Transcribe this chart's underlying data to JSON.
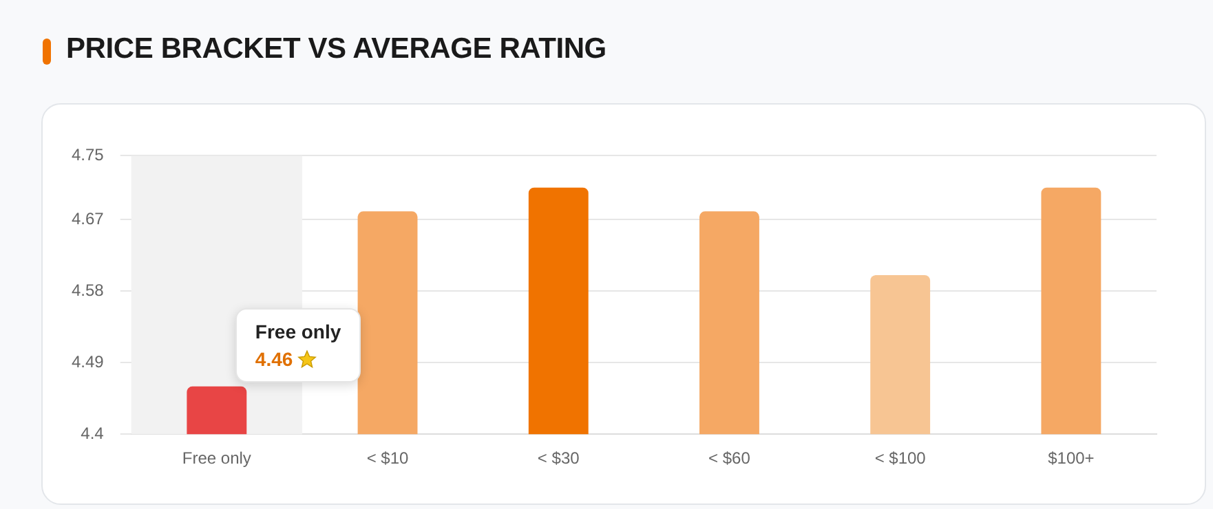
{
  "chart_data": {
    "type": "bar",
    "title": "PRICE BRACKET VS AVERAGE RATING",
    "categories": [
      "Free only",
      "< $10",
      "< $30",
      "< $60",
      "< $100",
      "$100+"
    ],
    "values": [
      4.46,
      4.68,
      4.71,
      4.68,
      4.6,
      4.71
    ],
    "colors": [
      "#e84545",
      "#f5a864",
      "#f07300",
      "#f5a864",
      "#f7c593",
      "#f5a864"
    ],
    "ylim": [
      4.4,
      4.75
    ],
    "yticks": [
      4.4,
      4.49,
      4.58,
      4.67,
      4.75
    ],
    "grid": "y",
    "bands": [
      {
        "axis": "x",
        "from": "Free only",
        "to": "Free only",
        "color": "#f2f2f2"
      }
    ],
    "annotations": [
      "Free only",
      "4.46"
    ]
  }
}
